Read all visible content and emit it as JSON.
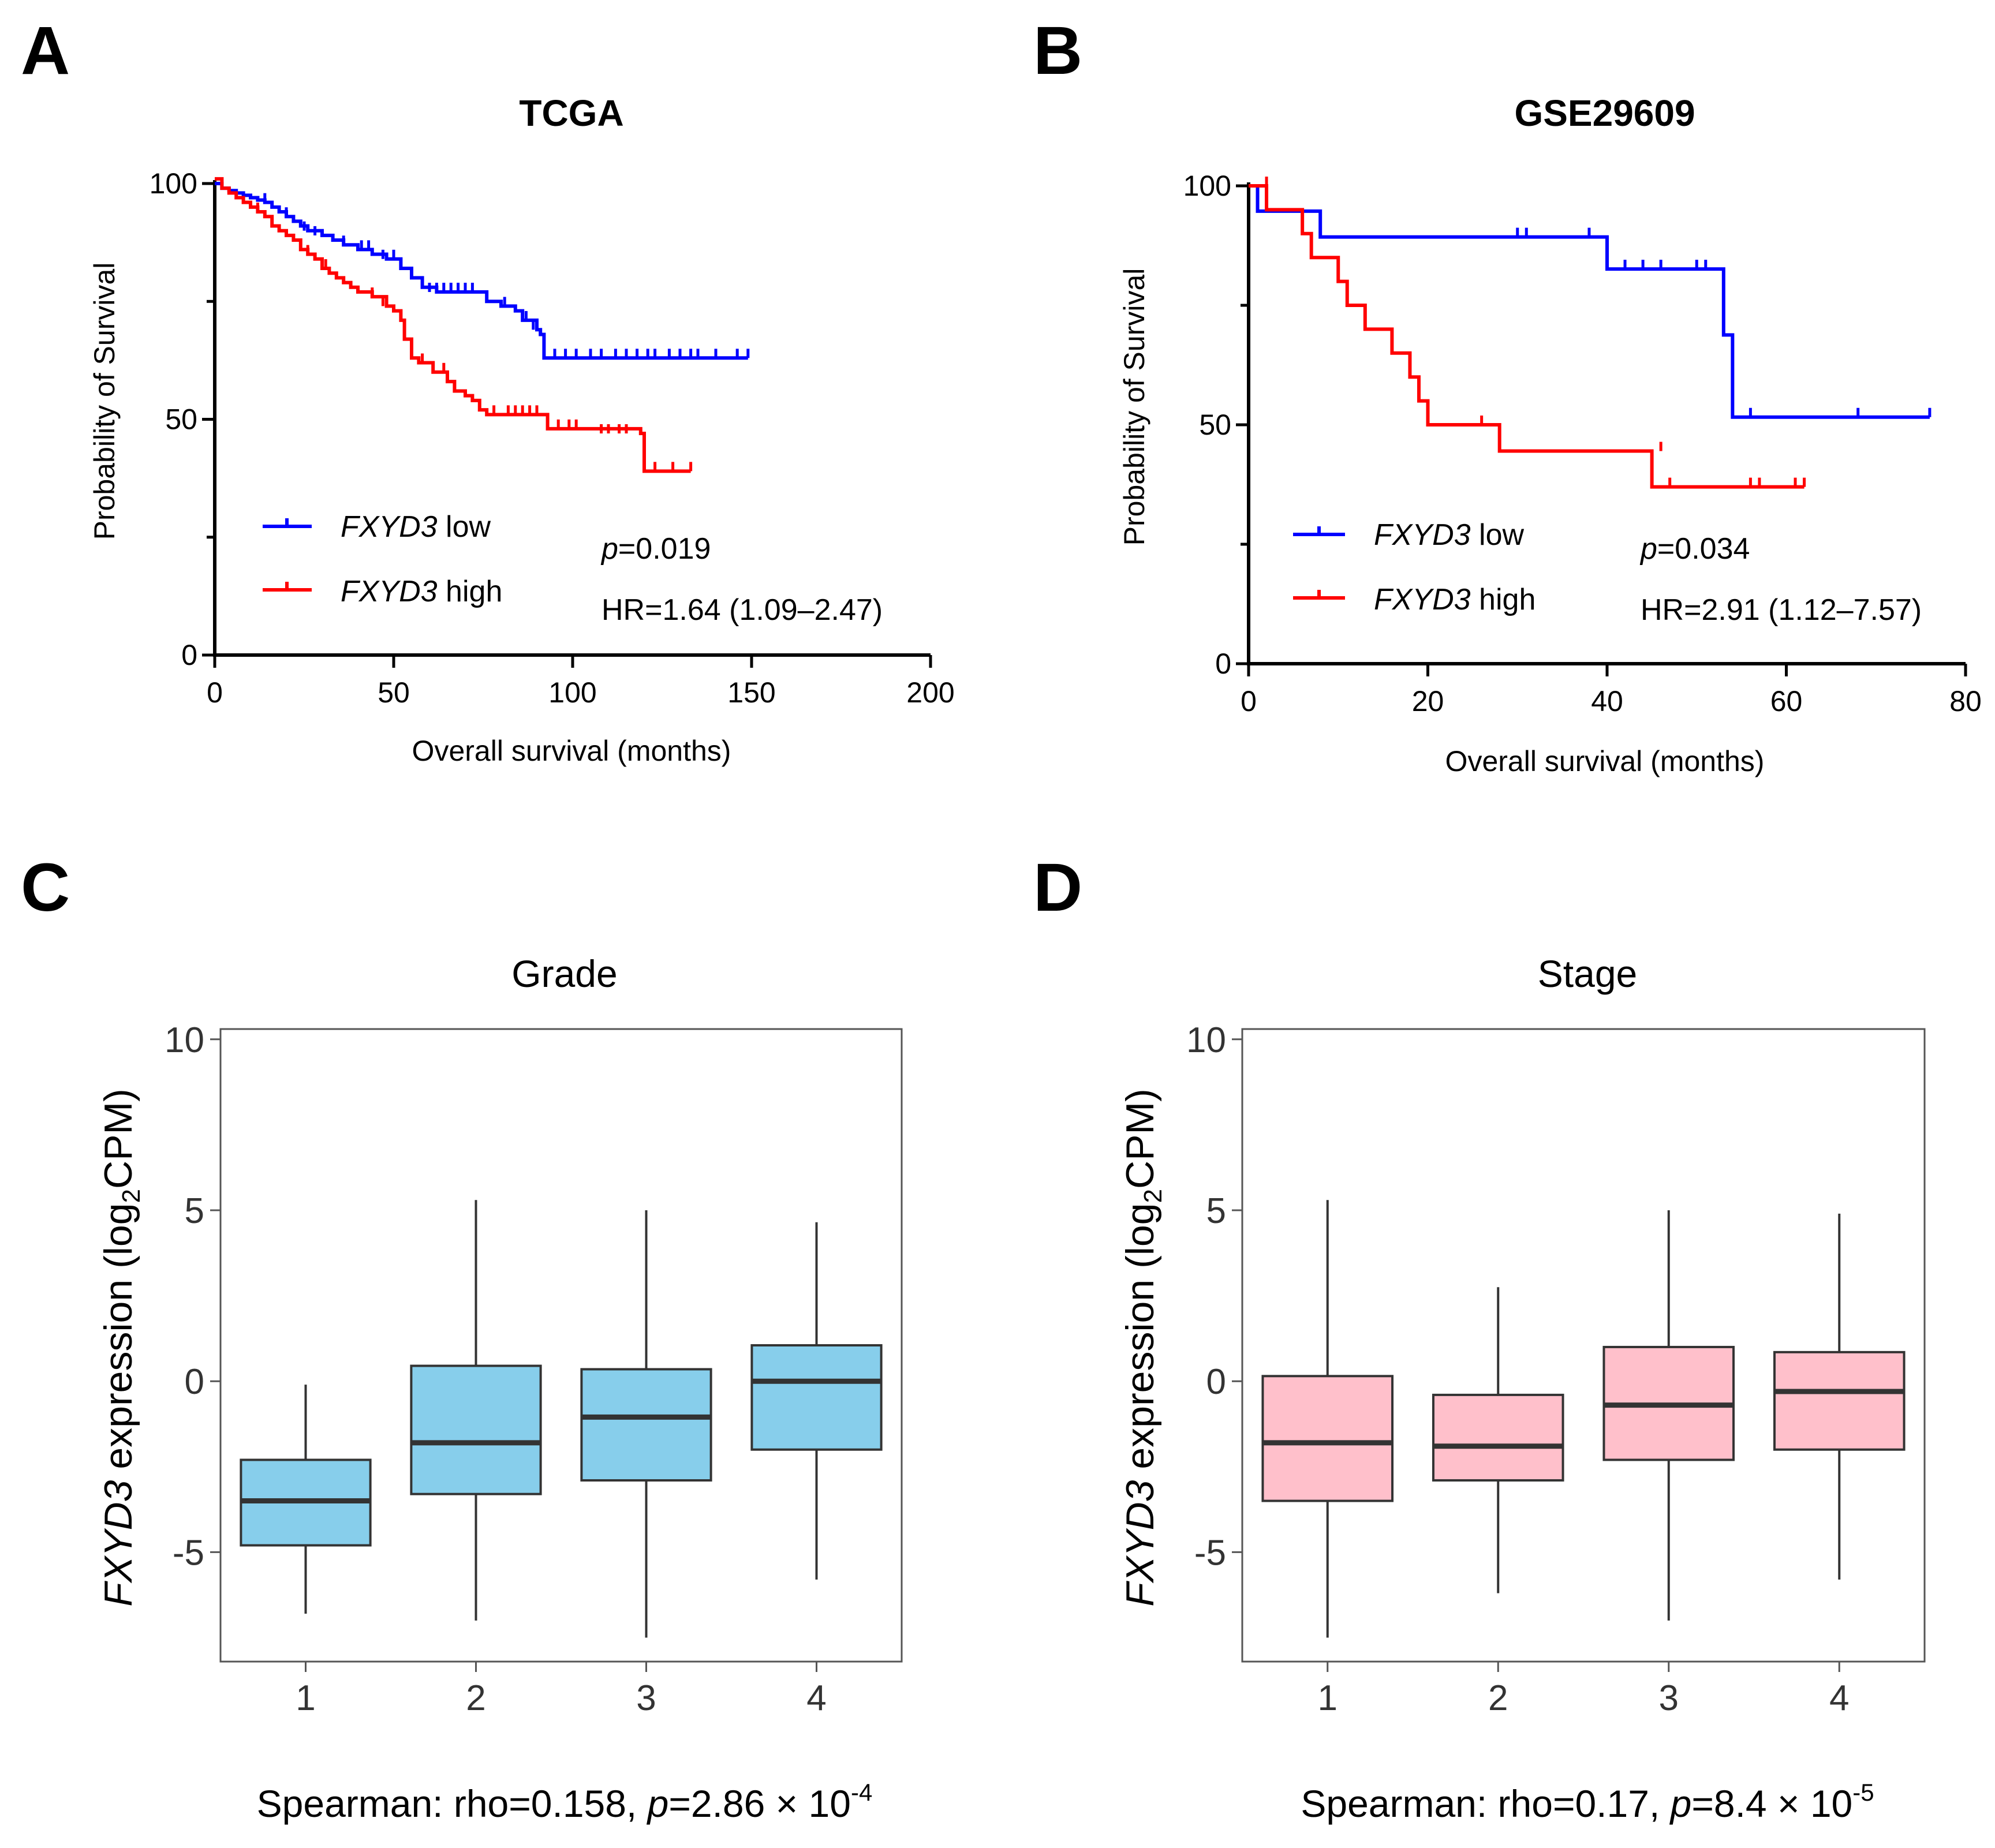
{
  "colors": {
    "low": "#0000ff",
    "high": "#ff0000",
    "grade_box": "#87ceeb",
    "stage_box": "#ffc0cb",
    "axis": "#000000",
    "whisker": "#333333",
    "frame": "#555555"
  },
  "chart_data": [
    {
      "panel": "A",
      "type": "line",
      "subtype": "kaplan-meier",
      "title": "TCGA",
      "xlabel": "Overall survival (months)",
      "ylabel": "Probability of Survival",
      "xlim": [
        0,
        200
      ],
      "ylim": [
        0,
        100
      ],
      "xticks": [
        0,
        50,
        100,
        150,
        200
      ],
      "yticks": [
        0,
        50,
        100
      ],
      "gene": "FXYD3",
      "legend": [
        {
          "gene": "FXYD3",
          "suffix": " low"
        },
        {
          "gene": "FXYD3",
          "suffix": " high"
        }
      ],
      "stats": {
        "p_symbol": "p",
        "p_value": "=0.019",
        "hr": "HR=1.64 (1.09–2.47)"
      },
      "series": [
        {
          "name": "FXYD3 low",
          "color_key": "low",
          "steps": [
            [
              0,
              100
            ],
            [
              2,
              99
            ],
            [
              4,
              98.5
            ],
            [
              6,
              98
            ],
            [
              8,
              97.5
            ],
            [
              10,
              97
            ],
            [
              12,
              96.5
            ],
            [
              14,
              96
            ],
            [
              16,
              95
            ],
            [
              18,
              94
            ],
            [
              20,
              93
            ],
            [
              22,
              92
            ],
            [
              24,
              91
            ],
            [
              26,
              90
            ],
            [
              30,
              89
            ],
            [
              33,
              88
            ],
            [
              36,
              87
            ],
            [
              40,
              86
            ],
            [
              44,
              85
            ],
            [
              48,
              84
            ],
            [
              52,
              82
            ],
            [
              55,
              80
            ],
            [
              58,
              78
            ],
            [
              62,
              77
            ],
            [
              76,
              75
            ],
            [
              80,
              74
            ],
            [
              84,
              73
            ],
            [
              86,
              71
            ],
            [
              90,
              69
            ],
            [
              91,
              68
            ],
            [
              92,
              63
            ],
            [
              149,
              63
            ]
          ],
          "censors": [
            [
              14,
              96
            ],
            [
              20,
              93
            ],
            [
              25,
              90
            ],
            [
              28,
              89
            ],
            [
              36,
              87
            ],
            [
              41,
              86
            ],
            [
              43,
              86
            ],
            [
              47,
              84
            ],
            [
              50,
              84
            ],
            [
              60,
              77
            ],
            [
              62,
              77
            ],
            [
              64,
              77
            ],
            [
              66,
              77
            ],
            [
              68,
              77
            ],
            [
              70,
              77
            ],
            [
              72,
              77
            ],
            [
              81,
              74
            ],
            [
              87,
              71
            ],
            [
              89,
              69
            ],
            [
              95,
              63
            ],
            [
              98,
              63
            ],
            [
              101,
              63
            ],
            [
              105,
              63
            ],
            [
              108,
              63
            ],
            [
              112,
              63
            ],
            [
              115,
              63
            ],
            [
              118,
              63
            ],
            [
              121,
              63
            ],
            [
              123,
              63
            ],
            [
              127,
              63
            ],
            [
              130,
              63
            ],
            [
              133,
              63
            ],
            [
              135,
              63
            ],
            [
              140,
              63
            ],
            [
              146,
              63
            ],
            [
              149,
              63
            ]
          ]
        },
        {
          "name": "FXYD3 high",
          "color_key": "high",
          "steps": [
            [
              0,
              101
            ],
            [
              2,
              99
            ],
            [
              4,
              98
            ],
            [
              6,
              97
            ],
            [
              8,
              96
            ],
            [
              10,
              95
            ],
            [
              12,
              94
            ],
            [
              14,
              93
            ],
            [
              16,
              91
            ],
            [
              18,
              90
            ],
            [
              20,
              89
            ],
            [
              22,
              88
            ],
            [
              24,
              86
            ],
            [
              26,
              85
            ],
            [
              28,
              84
            ],
            [
              30,
              82
            ],
            [
              32,
              81
            ],
            [
              34,
              80
            ],
            [
              36,
              79
            ],
            [
              38,
              78
            ],
            [
              40,
              77
            ],
            [
              44,
              76
            ],
            [
              48,
              74
            ],
            [
              50,
              73
            ],
            [
              52,
              71
            ],
            [
              53,
              67
            ],
            [
              55,
              63
            ],
            [
              57,
              62
            ],
            [
              61,
              60
            ],
            [
              65,
              58
            ],
            [
              67,
              56
            ],
            [
              70,
              55
            ],
            [
              72,
              54
            ],
            [
              74,
              52
            ],
            [
              76,
              51
            ],
            [
              93,
              48
            ],
            [
              119,
              47
            ],
            [
              120,
              39
            ],
            [
              133,
              39
            ]
          ],
          "censors": [
            [
              12,
              94
            ],
            [
              26,
              85
            ],
            [
              31,
              82
            ],
            [
              44,
              76
            ],
            [
              47,
              74
            ],
            [
              58,
              62
            ],
            [
              64,
              60
            ],
            [
              74,
              52
            ],
            [
              78,
              51
            ],
            [
              82,
              51
            ],
            [
              84,
              51
            ],
            [
              86,
              51
            ],
            [
              88,
              51
            ],
            [
              90,
              51
            ],
            [
              93,
              48
            ],
            [
              96,
              48
            ],
            [
              99,
              48
            ],
            [
              101,
              48
            ],
            [
              108,
              47
            ],
            [
              110,
              47
            ],
            [
              113,
              47
            ],
            [
              115,
              47
            ],
            [
              123,
              39
            ],
            [
              128,
              39
            ],
            [
              133,
              39
            ]
          ]
        }
      ]
    },
    {
      "panel": "B",
      "type": "line",
      "subtype": "kaplan-meier",
      "title": "GSE29609",
      "xlabel": "Overall survival (months)",
      "ylabel": "Probability of Survival",
      "xlim": [
        0,
        80
      ],
      "ylim": [
        0,
        100
      ],
      "xticks": [
        0,
        20,
        40,
        60,
        80
      ],
      "yticks": [
        0,
        50,
        100
      ],
      "gene": "FXYD3",
      "legend": [
        {
          "gene": "FXYD3",
          "suffix": " low"
        },
        {
          "gene": "FXYD3",
          "suffix": " high"
        }
      ],
      "stats": {
        "p_symbol": "p",
        "p_value": "=0.034",
        "hr": "HR=2.91 (1.12–7.57)"
      },
      "series": [
        {
          "name": "FXYD3 low",
          "color_key": "low",
          "steps": [
            [
              0,
              100
            ],
            [
              1,
              94.7
            ],
            [
              8,
              89.3
            ],
            [
              40,
              82.6
            ],
            [
              53,
              68.8
            ],
            [
              54,
              51.6
            ],
            [
              76,
              51.6
            ]
          ],
          "censors": [
            [
              30,
              89.3
            ],
            [
              31,
              89.3
            ],
            [
              38,
              89.3
            ],
            [
              42,
              82.6
            ],
            [
              44,
              82.6
            ],
            [
              46,
              82.6
            ],
            [
              50,
              82.6
            ],
            [
              51,
              82.6
            ],
            [
              56,
              51.6
            ],
            [
              68,
              51.6
            ],
            [
              76,
              51.6
            ]
          ]
        },
        {
          "name": "FXYD3 high",
          "color_key": "high",
          "steps": [
            [
              0,
              100
            ],
            [
              2,
              95
            ],
            [
              6,
              90
            ],
            [
              7,
              85
            ],
            [
              10,
              80
            ],
            [
              11,
              75
            ],
            [
              13,
              70
            ],
            [
              16,
              65
            ],
            [
              18,
              60
            ],
            [
              19,
              55
            ],
            [
              20,
              50
            ],
            [
              28,
              44.5
            ],
            [
              45,
              37
            ],
            [
              62,
              37
            ]
          ],
          "censors": [
            [
              2,
              100
            ],
            [
              26,
              50
            ],
            [
              46,
              44.5
            ],
            [
              47,
              37
            ],
            [
              56,
              37
            ],
            [
              57,
              37
            ],
            [
              61,
              37
            ],
            [
              62,
              37
            ]
          ]
        }
      ]
    },
    {
      "panel": "C",
      "type": "boxplot",
      "title": "Grade",
      "xlabel": "",
      "ylabel_gene": "FXYD3",
      "ylabel_rest": " expression (log",
      "ylabel_sub": "2",
      "ylabel_end": "CPM)",
      "ylim": [
        -8.2,
        10.3
      ],
      "yticks": [
        10,
        5,
        0,
        -5
      ],
      "ytick_labels": [
        "10",
        "5",
        "0",
        "-5"
      ],
      "categories": [
        "1",
        "2",
        "3",
        "4"
      ],
      "box_color_key": "grade_box",
      "boxes": [
        {
          "category": "1",
          "whisker_low": -6.8,
          "q1": -4.8,
          "median": -3.5,
          "q3": -2.3,
          "whisker_high": -0.1
        },
        {
          "category": "2",
          "whisker_low": -7.0,
          "q1": -3.3,
          "median": -1.8,
          "q3": 0.45,
          "whisker_high": 5.3
        },
        {
          "category": "3",
          "whisker_low": -7.5,
          "q1": -2.9,
          "median": -1.05,
          "q3": 0.35,
          "whisker_high": 5.0
        },
        {
          "category": "4",
          "whisker_low": -5.8,
          "q1": -2.0,
          "median": 0.0,
          "q3": 1.05,
          "whisker_high": 4.65
        }
      ],
      "stat": {
        "prefix": "Spearman: rho=0.158, ",
        "p_symbol": "p",
        "mid": "=2.86 × 10",
        "exponent": "-4"
      }
    },
    {
      "panel": "D",
      "type": "boxplot",
      "title": "Stage",
      "xlabel": "",
      "ylabel_gene": "FXYD3",
      "ylabel_rest": " expression (log",
      "ylabel_sub": "2",
      "ylabel_end": "CPM)",
      "ylim": [
        -8.2,
        10.3
      ],
      "yticks": [
        10,
        5,
        0,
        -5
      ],
      "ytick_labels": [
        "10",
        "5",
        "0",
        "-5"
      ],
      "categories": [
        "1",
        "2",
        "3",
        "4"
      ],
      "box_color_key": "stage_box",
      "boxes": [
        {
          "category": "1",
          "whisker_low": -7.5,
          "q1": -3.5,
          "median": -1.8,
          "q3": 0.15,
          "whisker_high": 5.3
        },
        {
          "category": "2",
          "whisker_low": -6.2,
          "q1": -2.9,
          "median": -1.9,
          "q3": -0.4,
          "whisker_high": 2.75
        },
        {
          "category": "3",
          "whisker_low": -7.0,
          "q1": -2.3,
          "median": -0.7,
          "q3": 1.0,
          "whisker_high": 5.0
        },
        {
          "category": "4",
          "whisker_low": -5.8,
          "q1": -2.0,
          "median": -0.3,
          "q3": 0.85,
          "whisker_high": 4.9
        }
      ],
      "stat": {
        "prefix": "Spearman: rho=0.17, ",
        "p_symbol": "p",
        "mid": "=8.4 × 10",
        "exponent": "-5"
      }
    }
  ],
  "panel_labels": [
    "A",
    "B",
    "C",
    "D"
  ]
}
